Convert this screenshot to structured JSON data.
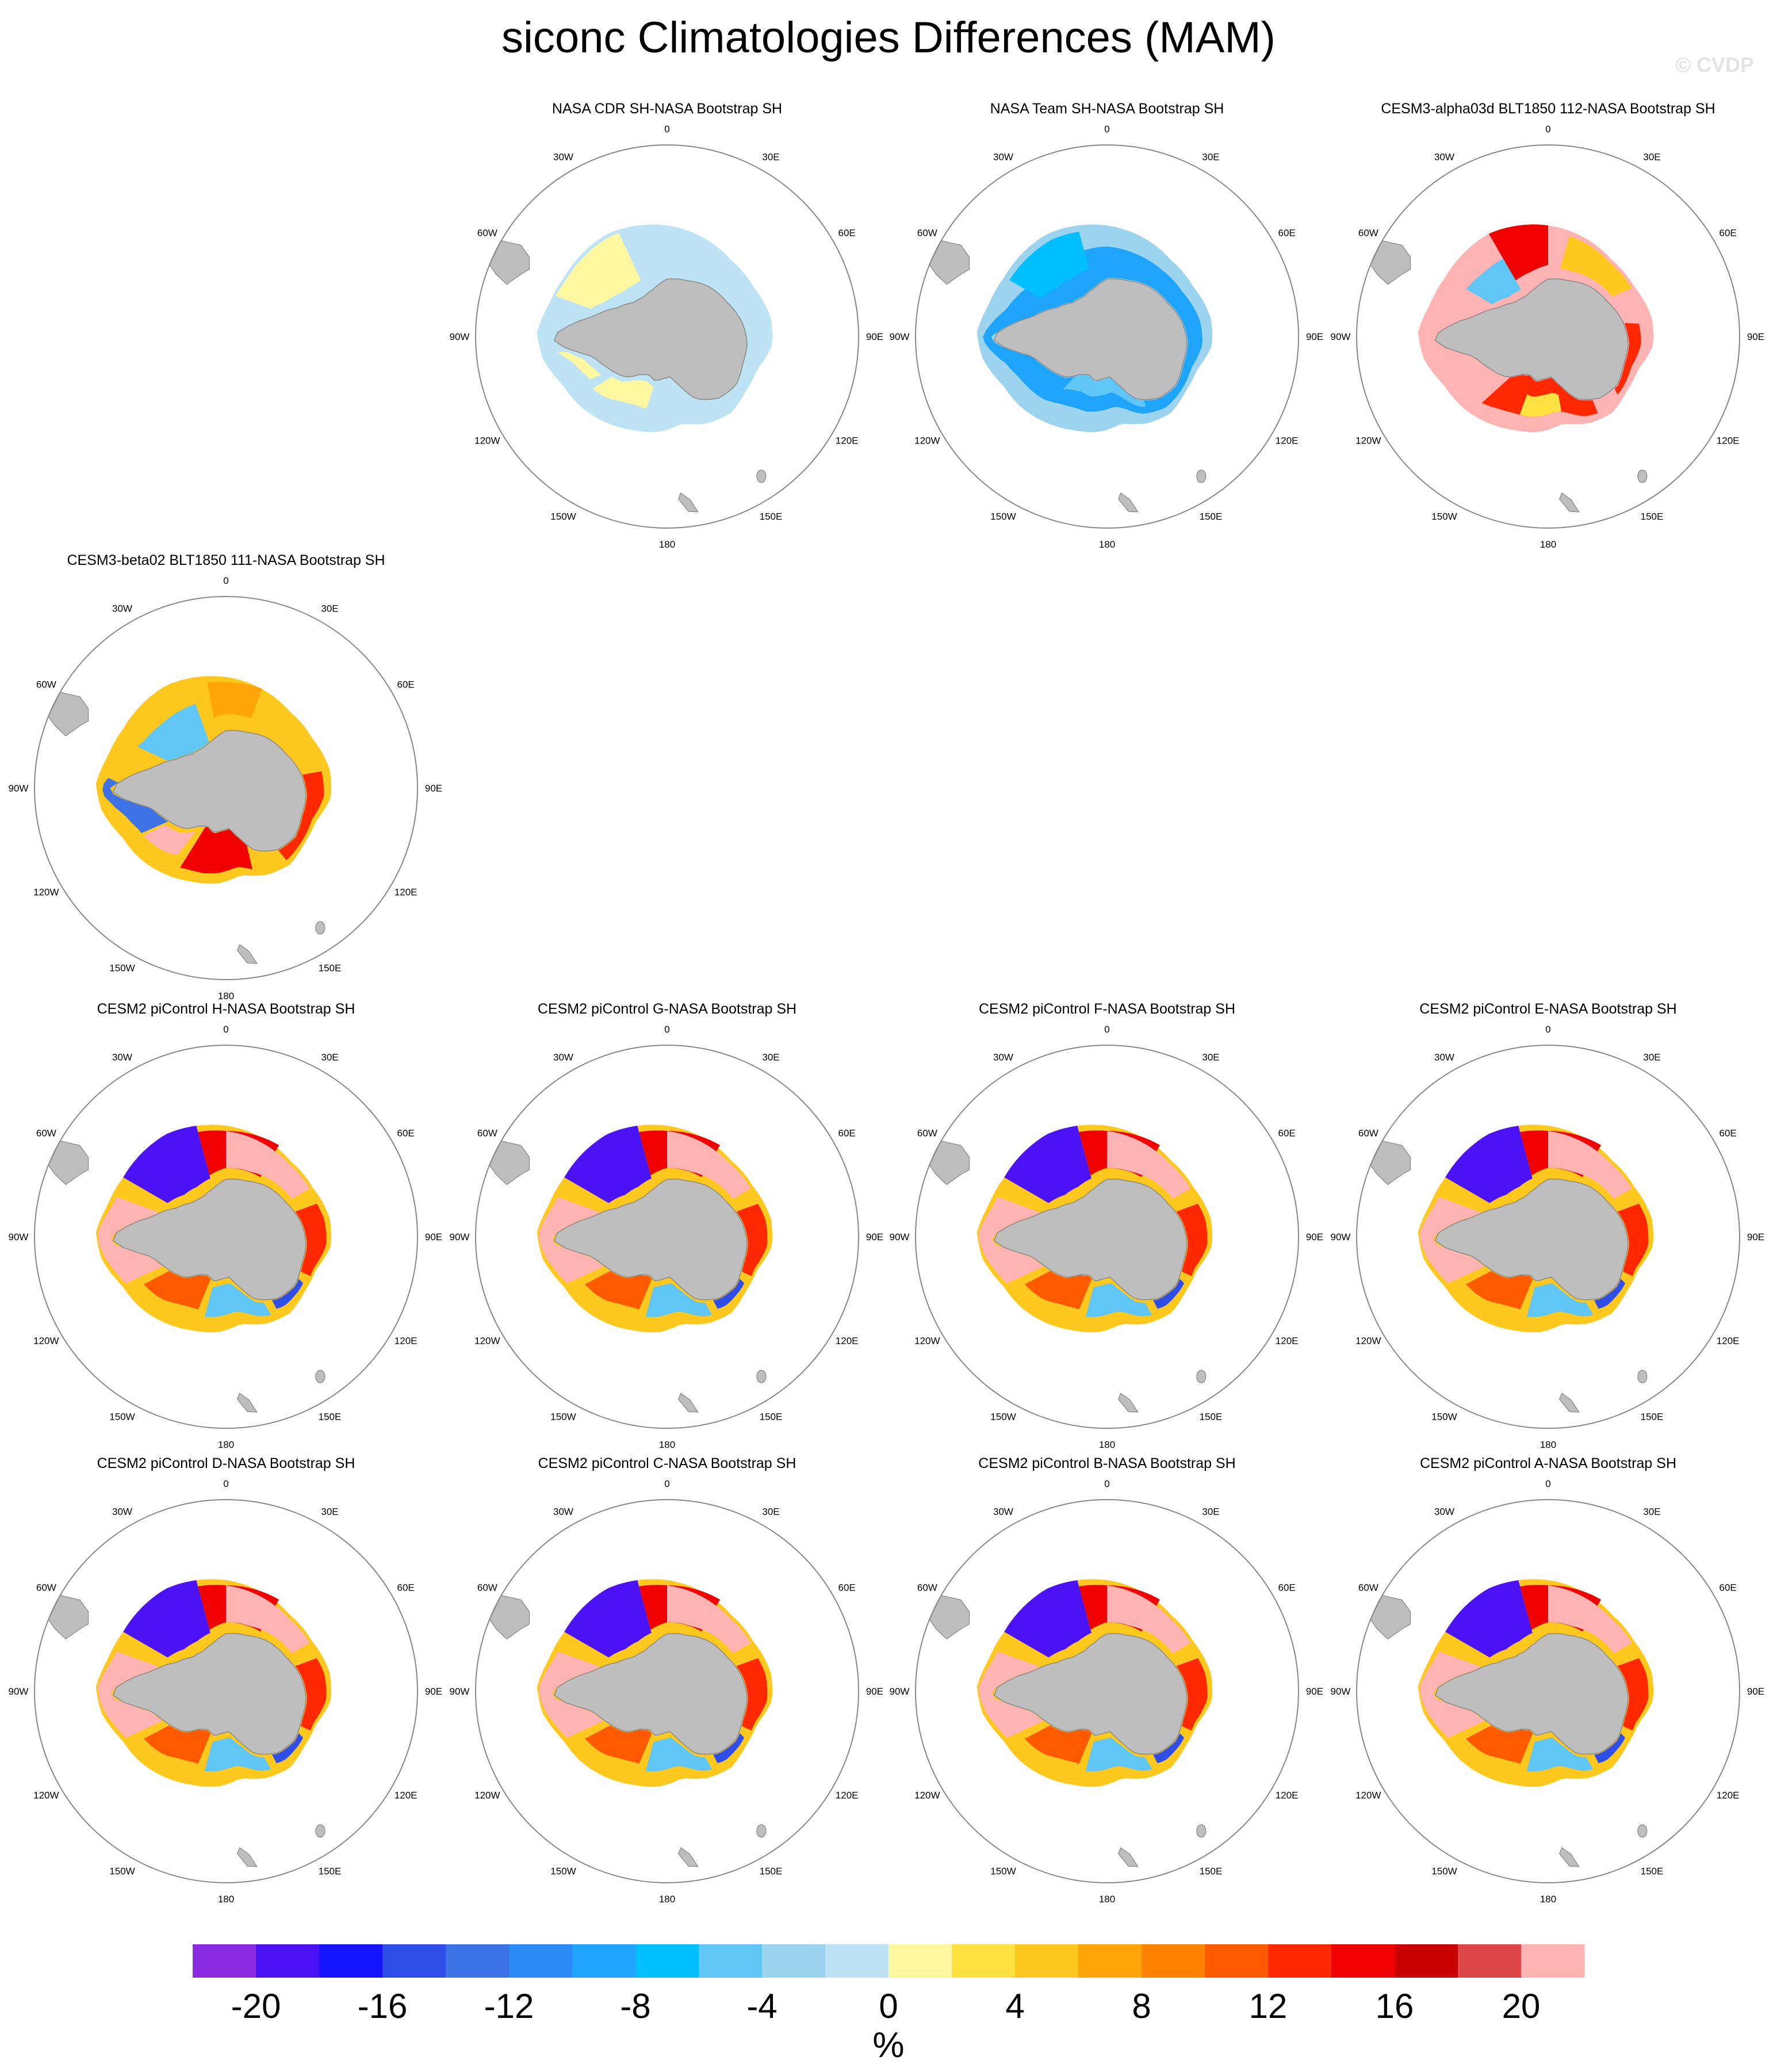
{
  "title": "siconc Climatologies Differences (MAM)",
  "watermark": "© CVDP",
  "panels": [
    {
      "title": "NASA CDR SH-NASA Bootstrap SH",
      "pattern": "cdr"
    },
    {
      "title": "NASA Team SH-NASA Bootstrap SH",
      "pattern": "team"
    },
    {
      "title": "CESM3-alpha03d BLT1850 112-NASA Bootstrap SH",
      "pattern": "alpha"
    },
    {
      "title": "CESM3-beta02 BLT1850 111-NASA Bootstrap SH",
      "pattern": "beta"
    },
    {
      "title": "CESM2 piControl H-NASA Bootstrap SH",
      "pattern": "cesm2"
    },
    {
      "title": "CESM2 piControl G-NASA Bootstrap SH",
      "pattern": "cesm2"
    },
    {
      "title": "CESM2 piControl F-NASA Bootstrap SH",
      "pattern": "cesm2"
    },
    {
      "title": "CESM2 piControl E-NASA Bootstrap SH",
      "pattern": "cesm2"
    },
    {
      "title": "CESM2 piControl D-NASA Bootstrap SH",
      "pattern": "cesm2"
    },
    {
      "title": "CESM2 piControl C-NASA Bootstrap SH",
      "pattern": "cesm2"
    },
    {
      "title": "CESM2 piControl B-NASA Bootstrap SH",
      "pattern": "cesm2"
    },
    {
      "title": "CESM2 piControl A-NASA Bootstrap SH",
      "pattern": "cesm2"
    }
  ],
  "longitude_labels": [
    "0",
    "30E",
    "60E",
    "90E",
    "120E",
    "150E",
    "180",
    "150W",
    "120W",
    "90W",
    "60W",
    "30W"
  ],
  "colorbar": {
    "colors": [
      "#8a2be2",
      "#4b12f5",
      "#1414ff",
      "#2f4ee8",
      "#3c72e6",
      "#2b8af5",
      "#1ea4fb",
      "#00bfff",
      "#5fc6f5",
      "#9cd3ee",
      "#bde3f5",
      "#fff8a0",
      "#ffe141",
      "#ffc81e",
      "#ffa50a",
      "#ff8200",
      "#ff5a00",
      "#ff2800",
      "#f00000",
      "#c80000",
      "#dc4646",
      "#ffb4b4"
    ],
    "tick_labels": [
      "-20",
      "-16",
      "-12",
      "-8",
      "-4",
      "0",
      "4",
      "8",
      "12",
      "16",
      "20"
    ],
    "unit": "%"
  }
}
